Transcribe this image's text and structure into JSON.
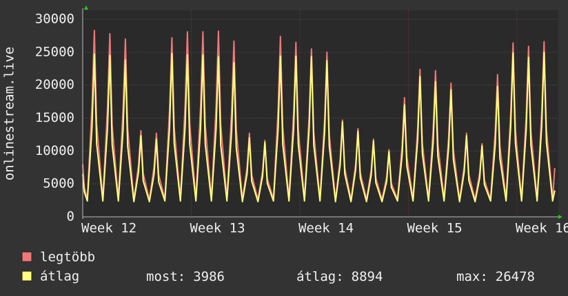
{
  "chart_data": {
    "type": "line",
    "y_label": "onlinestream.live",
    "x": [
      0,
      0.1,
      0.3,
      0.6,
      0.75,
      0.9,
      1.3,
      1.6,
      1.75,
      1.9,
      2.3,
      2.6,
      2.75,
      2.9,
      3.3,
      3.6,
      3.75,
      3.9,
      4.3,
      4.6,
      4.75,
      4.9,
      5.3,
      5.6,
      5.75,
      5.9,
      6.3,
      6.6,
      6.75,
      6.9,
      7.3,
      7.6,
      7.75,
      7.9,
      8.3,
      8.6,
      8.75,
      8.9,
      9.3,
      9.6,
      9.75,
      9.9,
      10.3,
      10.6,
      10.75,
      10.9,
      11.3,
      11.6,
      11.75,
      11.9,
      12.3,
      12.6,
      12.75,
      12.9,
      13.3,
      13.6,
      13.75,
      13.9,
      14.3,
      14.6,
      14.75,
      14.9,
      15.3,
      15.6,
      15.75,
      15.9,
      16.3,
      16.6,
      16.75,
      16.9,
      17.3,
      17.6,
      17.75,
      17.9,
      18.3,
      18.6,
      18.75,
      18.9,
      19.3,
      19.6,
      19.75,
      19.9,
      20.3,
      20.6,
      20.75,
      20.9,
      21.3,
      21.6,
      21.75,
      21.9,
      22.3,
      22.6,
      22.75,
      22.9,
      23.3,
      23.6,
      23.75,
      23.9,
      24.3,
      24.6,
      24.75,
      24.9,
      25.3,
      25.6,
      25.75,
      25.9,
      26.3,
      26.6,
      26.75,
      26.9,
      27.3,
      27.6,
      27.75,
      27.9,
      28.3,
      28.6,
      28.75,
      28.9,
      29.3,
      29.6,
      29.75,
      29.9,
      30.3,
      30.44
    ],
    "series": [
      {
        "name": "legtöbb",
        "color": "#f07878",
        "values": [
          8000,
          4500,
          2700,
          17000,
          28300,
          14200,
          2700,
          16700,
          27800,
          13900,
          2700,
          16200,
          27000,
          13500,
          2600,
          7900,
          13100,
          6600,
          2600,
          7600,
          12700,
          6400,
          2700,
          16300,
          27200,
          13600,
          2700,
          16900,
          28100,
          14100,
          2700,
          16900,
          28100,
          14100,
          2700,
          16900,
          28200,
          14100,
          2700,
          16000,
          26700,
          13400,
          2600,
          7600,
          12700,
          6400,
          2600,
          7000,
          11600,
          5800,
          2700,
          16400,
          27400,
          13700,
          2700,
          15900,
          26500,
          13300,
          2700,
          15300,
          25500,
          12800,
          2700,
          15000,
          25000,
          12500,
          2600,
          8800,
          14700,
          7400,
          2600,
          8000,
          13400,
          6700,
          2600,
          7100,
          11800,
          5900,
          2600,
          6100,
          10200,
          5100,
          2700,
          10900,
          18100,
          9100,
          2700,
          13400,
          22400,
          11200,
          2700,
          13300,
          22200,
          11100,
          2700,
          12200,
          20300,
          10200,
          2600,
          7600,
          12700,
          6400,
          2600,
          6700,
          11100,
          5600,
          2700,
          13000,
          21600,
          10800,
          2700,
          15800,
          26400,
          13200,
          2700,
          15500,
          25900,
          13000,
          2700,
          16000,
          26600,
          13300,
          2700,
          7400
        ]
      },
      {
        "name": "átlag",
        "color": "#ffff80",
        "values": [
          6500,
          3800,
          2400,
          13600,
          24700,
          11100,
          2400,
          13500,
          24500,
          11000,
          2400,
          13100,
          23800,
          10700,
          2300,
          6800,
          12300,
          5500,
          2300,
          6500,
          11800,
          5300,
          2400,
          13600,
          24800,
          11200,
          2400,
          13500,
          24600,
          11100,
          2400,
          13500,
          24600,
          11100,
          2400,
          13400,
          24300,
          10900,
          2400,
          12900,
          23400,
          10500,
          2300,
          6600,
          12000,
          5400,
          2300,
          6200,
          11300,
          5100,
          2400,
          13400,
          24400,
          11000,
          2400,
          13400,
          24400,
          11000,
          2400,
          13400,
          24300,
          10900,
          2400,
          13000,
          23700,
          10700,
          2300,
          7900,
          14400,
          6500,
          2300,
          7200,
          13000,
          5900,
          2300,
          6300,
          11500,
          5200,
          2300,
          5400,
          9900,
          4500,
          2400,
          9400,
          17000,
          7700,
          2400,
          11700,
          21300,
          9600,
          2400,
          11300,
          20500,
          9200,
          2400,
          10600,
          19300,
          8700,
          2300,
          6800,
          12300,
          5500,
          2300,
          5900,
          10800,
          4900,
          2400,
          10900,
          19800,
          8900,
          2400,
          13700,
          24900,
          11200,
          2400,
          13300,
          24200,
          10900,
          2400,
          13800,
          25000,
          11300,
          2400,
          4000
        ]
      }
    ],
    "xlim": [
      0,
      30.67
    ],
    "xticks": [
      {
        "value": 0,
        "label": "Week 12"
      },
      {
        "value": 7,
        "label": "Week 13"
      },
      {
        "value": 14,
        "label": "Week 14"
      },
      {
        "value": 21,
        "label": "Week 15"
      },
      {
        "value": 28,
        "label": "Week 16"
      }
    ],
    "ylim": [
      0,
      30000
    ],
    "yticks": [
      0,
      5000,
      10000,
      15000,
      20000,
      25000,
      30000
    ],
    "grid": true,
    "stats": [
      {
        "label": "most:",
        "value": 3986
      },
      {
        "label": "átlag:",
        "value": 8894
      },
      {
        "label": "max:",
        "value": 26478
      }
    ]
  }
}
